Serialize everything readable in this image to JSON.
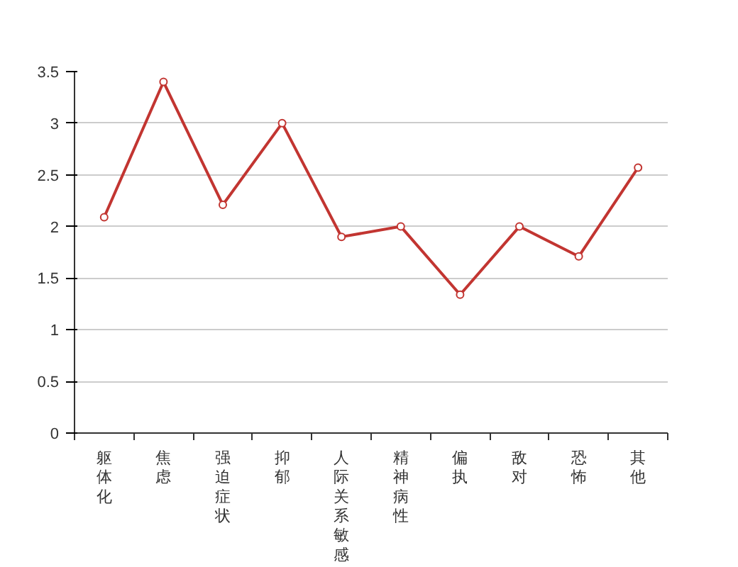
{
  "chart_data": {
    "type": "line",
    "categories": [
      "躯体化",
      "焦虑",
      "强迫症状",
      "抑郁",
      "人际关系敏感",
      "精神病性",
      "偏执",
      "敌对",
      "恐怖",
      "其他"
    ],
    "series": [
      {
        "color": "#c23531",
        "values": [
          2.09,
          3.4,
          2.21,
          3.0,
          1.9,
          2.0,
          1.34,
          2.0,
          1.71,
          2.57
        ]
      }
    ],
    "ylim": [
      0,
      3.5
    ],
    "yticks": [
      0,
      0.5,
      1,
      1.5,
      2,
      2.5,
      3,
      3.5
    ],
    "grid": "y",
    "marker": "circle",
    "line_style": "solid"
  }
}
